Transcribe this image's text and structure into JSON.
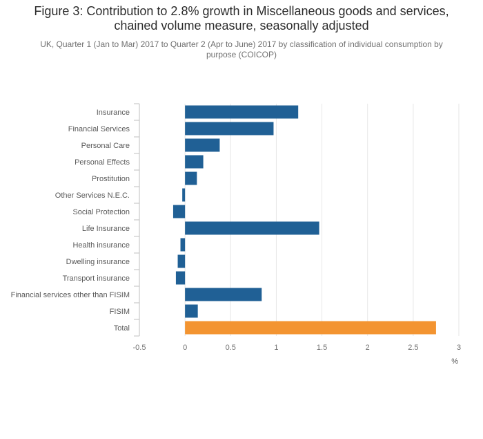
{
  "title_line1": "Figure 3: Contribution to 2.8% growth in Miscellaneous goods and services,",
  "title_line2": "chained volume measure, seasonally adjusted",
  "subtitle": "UK, Quarter 1 (Jan to Mar) 2017 to Quarter 2 (Apr to June) 2017 by classification of individual consumption by purpose (COICOP)",
  "chart_data": {
    "type": "bar",
    "orientation": "horizontal",
    "categories": [
      "Insurance",
      "Financial Services",
      "Personal Care",
      "Personal Effects",
      "Prostitution",
      "Other Services N.E.C.",
      "Social Protection",
      "Life Insurance",
      "Health insurance",
      "Dwelling insurance",
      "Transport insurance",
      "Financial services other than FISIM",
      "FISIM",
      "Total"
    ],
    "values": [
      1.24,
      0.97,
      0.38,
      0.2,
      0.13,
      -0.03,
      -0.13,
      1.47,
      -0.05,
      -0.08,
      -0.1,
      0.84,
      0.14,
      2.75
    ],
    "xlim": [
      -0.5,
      3
    ],
    "ticks": [
      "-0.5",
      "0",
      "0.5",
      "1",
      "1.5",
      "2",
      "2.5",
      "3"
    ],
    "unit_label": "%",
    "grid": true,
    "colors": {
      "bar": "#206095",
      "total": "#f39431",
      "grid": "#e6e6e6",
      "axis": "#bfbfbf"
    }
  }
}
